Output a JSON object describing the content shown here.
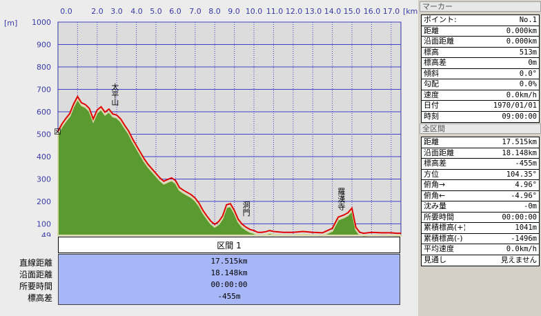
{
  "chart_data": {
    "type": "area",
    "xlabel": "[km]",
    "ylabel": "[m]",
    "x_ticks": [
      "0.0",
      "2.0",
      "3.0",
      "4.0",
      "5.0",
      "6.0",
      "7.0",
      "8.0",
      "9.0",
      "10.0",
      "11.0",
      "12.0",
      "13.0",
      "14.0",
      "15.0",
      "16.0",
      "17.0"
    ],
    "y_ticks": [
      "1000",
      "900",
      "800",
      "700",
      "600",
      "500",
      "400",
      "300",
      "200",
      "100",
      "49"
    ],
    "ylim": [
      49,
      1000
    ],
    "xlim": [
      0,
      17.5
    ],
    "grid": true,
    "series": [
      {
        "name": "",
        "x": [
          0.0,
          0.2,
          0.4,
          0.6,
          0.8,
          1.0,
          1.2,
          1.4,
          1.6,
          1.8,
          2.0,
          2.2,
          2.4,
          2.6,
          2.8,
          3.0,
          3.2,
          3.4,
          3.6,
          3.8,
          4.0,
          4.2,
          4.4,
          4.6,
          4.8,
          5.0,
          5.2,
          5.4,
          5.6,
          5.8,
          6.0,
          6.2,
          6.4,
          6.6,
          6.8,
          7.0,
          7.2,
          7.4,
          7.6,
          7.8,
          8.0,
          8.2,
          8.4,
          8.6,
          8.8,
          9.0,
          9.2,
          9.4,
          9.6,
          9.8,
          10.0,
          10.2,
          10.4,
          10.6,
          10.8,
          11.0,
          11.5,
          12.0,
          12.5,
          13.0,
          13.5,
          14.0,
          14.3,
          14.6,
          14.8,
          15.0,
          15.2,
          15.4,
          15.6,
          16.0,
          16.5,
          17.0,
          17.3,
          17.515
        ],
        "y": [
          513,
          545,
          570,
          592,
          635,
          668,
          640,
          632,
          615,
          568,
          608,
          622,
          598,
          612,
          590,
          585,
          568,
          540,
          515,
          480,
          450,
          420,
          390,
          365,
          345,
          325,
          305,
          290,
          298,
          305,
          293,
          262,
          250,
          240,
          230,
          215,
          192,
          160,
          135,
          112,
          98,
          110,
          135,
          185,
          190,
          160,
          120,
          98,
          85,
          75,
          70,
          62,
          62,
          65,
          70,
          66,
          62,
          62,
          66,
          62,
          60,
          80,
          130,
          140,
          150,
          170,
          85,
          62,
          58,
          62,
          60,
          60,
          58,
          58
        ]
      }
    ],
    "annotations": [
      "太平山",
      "洞門",
      "羅漢寺"
    ]
  },
  "section": {
    "header": "区間 1",
    "rows": [
      {
        "label": "直線距離",
        "value": "17.515km"
      },
      {
        "label": "沿面距離",
        "value": "18.148km"
      },
      {
        "label": "所要時間",
        "value": "00:00:00"
      },
      {
        "label": "標高差",
        "value": "-455m"
      }
    ]
  },
  "marker_panel": {
    "title": "マーカー",
    "rows": [
      {
        "label": "ポイント:",
        "value": "No.1"
      },
      {
        "label": "距離",
        "value": "0.000km"
      },
      {
        "label": "沿面距離",
        "value": "0.000km"
      },
      {
        "label": "標高",
        "value": "513m"
      },
      {
        "label": "標高差",
        "value": "0m"
      },
      {
        "label": "傾斜",
        "value": "0.0°"
      },
      {
        "label": "勾配",
        "value": "0.0%"
      },
      {
        "label": "速度",
        "value": "0.0km/h"
      },
      {
        "label": "日付",
        "value": "1970/01/01"
      },
      {
        "label": "時刻",
        "value": "09:00:00"
      }
    ]
  },
  "total_panel": {
    "title": "全区間",
    "rows": [
      {
        "label": "距離",
        "value": "17.515km"
      },
      {
        "label": "沿面距離",
        "value": "18.148km"
      },
      {
        "label": "標高差",
        "value": "-455m"
      },
      {
        "label": "方位",
        "value": "104.35°"
      },
      {
        "label": "俯角→",
        "value": "4.96°"
      },
      {
        "label": "俯角←",
        "value": "-4.96°"
      },
      {
        "label": "沈み量",
        "value": "-0m"
      },
      {
        "label": "所要時間",
        "value": "00:00:00"
      },
      {
        "label": "累積標高(+)",
        "value": "1041m"
      },
      {
        "label": "累積標高(-)",
        "value": "-1496m"
      },
      {
        "label": "平均速度",
        "value": "0.0km/h"
      },
      {
        "label": "見通し",
        "value": "見えません"
      }
    ]
  },
  "colors": {
    "plot_bg": "#dcdcdc",
    "grid": "#4040c8",
    "terrain": "#5a9a30",
    "route": "#e00000",
    "section_bg": "#a6b6f6"
  }
}
